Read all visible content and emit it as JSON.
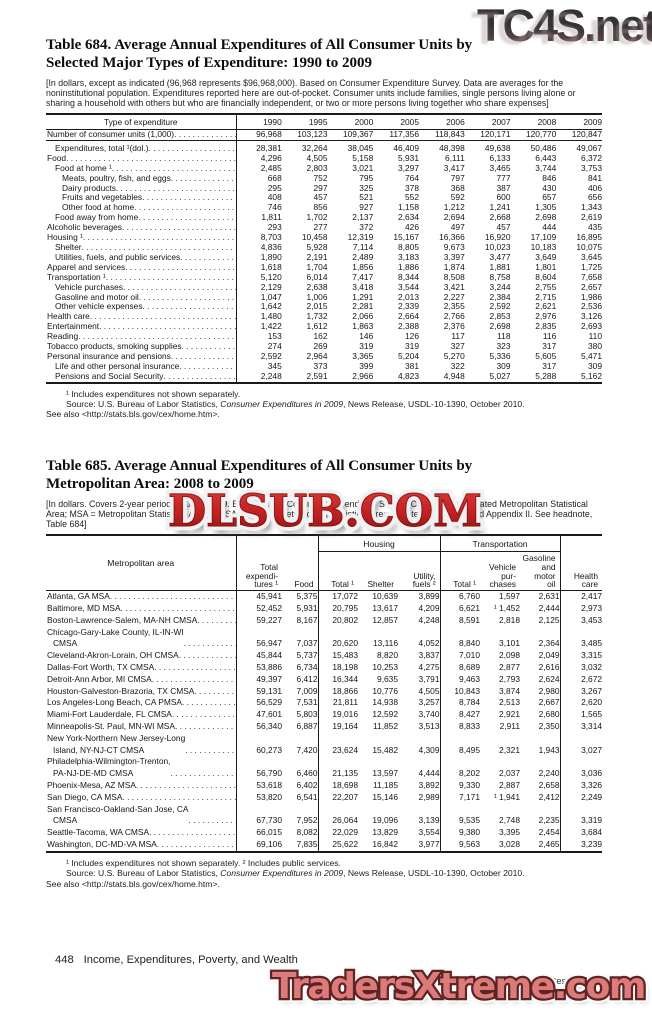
{
  "watermarks": {
    "top_right": "TC4S.net",
    "middle": "DLSUB.COM",
    "bottom": "TradersXtreme.com",
    "colors": {
      "middle_red": "#c42222",
      "bottom_fill": "#dd7a7a",
      "bottom_outline": "#5d2424"
    }
  },
  "table684": {
    "title_line1": "Table 684. Average Annual Expenditures of All Consumer Units by",
    "title_line2": "Selected Major Types of Expenditure: 1990 to 2009",
    "headnote": "[In dollars, except as indicated (96,968 represents $96,968,000). Based on Consumer Expenditure Survey. Data are averages for the noninstitutional population. Expenditures reported here are out-of-pocket. Consumer units include families, single persons living alone or sharing a household with others but who are financially independent, or two or more persons living together who share expenses]",
    "stub_header": "Type of expenditure",
    "years": [
      "1990",
      "1995",
      "2000",
      "2005",
      "2006",
      "2007",
      "2008",
      "2009"
    ],
    "rows": [
      {
        "label": "Number of consumer units (1,000)",
        "indent": 0,
        "bold": false,
        "values": [
          "96,968",
          "103,123",
          "109,367",
          "117,356",
          "118,843",
          "120,171",
          "120,770",
          "120,847"
        ]
      },
      {
        "label": "Expenditures, total ¹(dol.)",
        "indent": 1,
        "bold": true,
        "values": [
          "28,381",
          "32,264",
          "38,045",
          "46,409",
          "48,398",
          "49,638",
          "50,486",
          "49,067"
        ]
      },
      {
        "label": "Food",
        "indent": 0,
        "bold": false,
        "values": [
          "4,296",
          "4,505",
          "5,158",
          "5,931",
          "6,111",
          "6,133",
          "6,443",
          "6,372"
        ]
      },
      {
        "label": "Food at home ¹",
        "indent": 1,
        "bold": false,
        "values": [
          "2,485",
          "2,803",
          "3,021",
          "3,297",
          "3,417",
          "3,465",
          "3,744",
          "3,753"
        ]
      },
      {
        "label": "Meats, poultry, fish, and eggs",
        "indent": 2,
        "bold": false,
        "values": [
          "668",
          "752",
          "795",
          "764",
          "797",
          "777",
          "846",
          "841"
        ]
      },
      {
        "label": "Dairy products",
        "indent": 2,
        "bold": false,
        "values": [
          "295",
          "297",
          "325",
          "378",
          "368",
          "387",
          "430",
          "406"
        ]
      },
      {
        "label": "Fruits and vegetables",
        "indent": 2,
        "bold": false,
        "values": [
          "408",
          "457",
          "521",
          "552",
          "592",
          "600",
          "657",
          "656"
        ]
      },
      {
        "label": "Other food at home",
        "indent": 2,
        "bold": false,
        "values": [
          "746",
          "856",
          "927",
          "1,158",
          "1,212",
          "1,241",
          "1,305",
          "1,343"
        ]
      },
      {
        "label": "Food away from home",
        "indent": 1,
        "bold": false,
        "values": [
          "1,811",
          "1,702",
          "2,137",
          "2,634",
          "2,694",
          "2,668",
          "2,698",
          "2,619"
        ]
      },
      {
        "label": "Alcoholic beverages",
        "indent": 0,
        "bold": false,
        "values": [
          "293",
          "277",
          "372",
          "426",
          "497",
          "457",
          "444",
          "435"
        ]
      },
      {
        "label": "Housing ¹",
        "indent": 0,
        "bold": false,
        "values": [
          "8,703",
          "10,458",
          "12,319",
          "15,167",
          "16,366",
          "16,920",
          "17,109",
          "16,895"
        ]
      },
      {
        "label": "Shelter",
        "indent": 1,
        "bold": false,
        "values": [
          "4,836",
          "5,928",
          "7,114",
          "8,805",
          "9,673",
          "10,023",
          "10,183",
          "10,075"
        ]
      },
      {
        "label": "Utilities, fuels, and public services",
        "indent": 1,
        "bold": false,
        "values": [
          "1,890",
          "2,191",
          "2,489",
          "3,183",
          "3,397",
          "3,477",
          "3,649",
          "3,645"
        ]
      },
      {
        "label": "Apparel and services",
        "indent": 0,
        "bold": false,
        "values": [
          "1,618",
          "1,704",
          "1,856",
          "1,886",
          "1,874",
          "1,881",
          "1,801",
          "1,725"
        ]
      },
      {
        "label": "Transportation ¹",
        "indent": 0,
        "bold": false,
        "values": [
          "5,120",
          "6,014",
          "7,417",
          "8,344",
          "8,508",
          "8,758",
          "8,604",
          "7,658"
        ]
      },
      {
        "label": "Vehicle purchases",
        "indent": 1,
        "bold": false,
        "values": [
          "2,129",
          "2,638",
          "3,418",
          "3,544",
          "3,421",
          "3,244",
          "2,755",
          "2,657"
        ]
      },
      {
        "label": "Gasoline and motor oil",
        "indent": 1,
        "bold": false,
        "values": [
          "1,047",
          "1,006",
          "1,291",
          "2,013",
          "2,227",
          "2,384",
          "2,715",
          "1,986"
        ]
      },
      {
        "label": "Other vehicle expenses",
        "indent": 1,
        "bold": false,
        "values": [
          "1,642",
          "2,015",
          "2,281",
          "2,339",
          "2,355",
          "2,592",
          "2,621",
          "2,536"
        ]
      },
      {
        "label": "Health care",
        "indent": 0,
        "bold": false,
        "values": [
          "1,480",
          "1,732",
          "2,066",
          "2,664",
          "2,766",
          "2,853",
          "2,976",
          "3,126"
        ]
      },
      {
        "label": "Entertainment",
        "indent": 0,
        "bold": false,
        "values": [
          "1,422",
          "1,612",
          "1,863",
          "2,388",
          "2,376",
          "2,698",
          "2,835",
          "2,693"
        ]
      },
      {
        "label": "Reading",
        "indent": 0,
        "bold": false,
        "values": [
          "153",
          "162",
          "146",
          "126",
          "117",
          "118",
          "116",
          "110"
        ]
      },
      {
        "label": "Tobacco products, smoking supplies",
        "indent": 0,
        "bold": false,
        "values": [
          "274",
          "269",
          "319",
          "319",
          "327",
          "323",
          "317",
          "380"
        ]
      },
      {
        "label": "Personal insurance and pensions",
        "indent": 0,
        "bold": false,
        "values": [
          "2,592",
          "2,964",
          "3,365",
          "5,204",
          "5,270",
          "5,336",
          "5,605",
          "5,471"
        ]
      },
      {
        "label": "Life and other personal insurance",
        "indent": 1,
        "bold": false,
        "values": [
          "345",
          "373",
          "399",
          "381",
          "322",
          "309",
          "317",
          "309"
        ]
      },
      {
        "label": "Pensions and Social Security",
        "indent": 1,
        "bold": false,
        "values": [
          "2,248",
          "2,591",
          "2,966",
          "4,823",
          "4,948",
          "5,027",
          "5,288",
          "5,162"
        ]
      }
    ],
    "notes": {
      "fn1": "¹ Includes expenditures not shown separately.",
      "source_pre": "Source: U.S. Bureau of Labor Statistics, ",
      "source_em": "Consumer Expenditures in 2009",
      "source_post": ", News Release, USDL-10-1390, October 2010.",
      "see_also": "See also <http://stats.bls.gov/cex/home.htm>."
    }
  },
  "table685": {
    "title_line1": "Table 685. Average Annual Expenditures of All Consumer Units by",
    "title_line2": "Metropolitan Area: 2008 to 2009",
    "headnote": "[In dollars. Covers 2-year period, 2008 to 2009. Based on the Consumer Expenditure Survey. CMSA = Consolidated Metropolitan Statistical Area; MSA = Metropolitan Statistical Area; PMSA = Primary Metropolitan Statistical Area. See text, Section 1 and Appendix II. See headnote, Table 684]",
    "stub_header": "Metropolitan area",
    "groups": [
      "Housing",
      "Transportation"
    ],
    "columns": [
      "Total\nexpendi-\ntures ¹",
      "Food",
      "Total ¹",
      "Shelter",
      "Utility,\nfuels ²",
      "Total ¹",
      "Vehicle\npur-\nchases",
      "Gasoline\nand\nmotor\noil",
      "Health\ncare"
    ],
    "rows": [
      {
        "label": "Atlanta, GA MSA",
        "values": [
          "45,941",
          "5,375",
          "17,072",
          "10,639",
          "3,899",
          "6,760",
          "1,597",
          "2,631",
          "2,417"
        ]
      },
      {
        "label": "Baltimore, MD MSA",
        "values": [
          "52,452",
          "5,931",
          "20,795",
          "13,617",
          "4,209",
          "6,621",
          "¹ 1,452",
          "2,444",
          "2,973"
        ]
      },
      {
        "label": "Boston-Lawrence-Salem, MA-NH CMSA",
        "values": [
          "59,227",
          "8,167",
          "20,802",
          "12,857",
          "4,248",
          "8,591",
          "2,818",
          "2,125",
          "3,453"
        ]
      },
      {
        "label": "Chicago-Gary-Lake County, IL-IN-WI\nCMSA",
        "values": [
          "56,947",
          "7,037",
          "20,620",
          "13,116",
          "4,052",
          "8,840",
          "3,101",
          "2,364",
          "3,485"
        ]
      },
      {
        "label": "Cleveland-Akron-Lorain, OH CMSA",
        "values": [
          "45,844",
          "5,737",
          "15,483",
          "8,820",
          "3,837",
          "7,010",
          "2,098",
          "2,049",
          "3,315"
        ]
      },
      {
        "label": "Dallas-Fort Worth, TX CMSA",
        "values": [
          "53,886",
          "6,734",
          "18,198",
          "10,253",
          "4,275",
          "8,689",
          "2,877",
          "2,616",
          "3,032"
        ]
      },
      {
        "label": "Detroit-Ann Arbor, MI CMSA",
        "values": [
          "49,397",
          "6,412",
          "16,344",
          "9,635",
          "3,791",
          "9,463",
          "2,793",
          "2,624",
          "2,672"
        ]
      },
      {
        "label": "Houston-Galveston-Brazoria, TX CMSA",
        "values": [
          "59,131",
          "7,009",
          "18,866",
          "10,776",
          "4,505",
          "10,843",
          "3,874",
          "2,980",
          "3,267"
        ]
      },
      {
        "label": "Los Angeles-Long Beach, CA PMSA",
        "values": [
          "56,529",
          "7,531",
          "21,811",
          "14,938",
          "3,257",
          "8,784",
          "2,513",
          "2,667",
          "2,620"
        ]
      },
      {
        "label": "Miami-Fort Lauderdale, FL CMSA",
        "values": [
          "47,601",
          "5,803",
          "19,016",
          "12,592",
          "3,740",
          "8,427",
          "2,921",
          "2,680",
          "1,565"
        ]
      },
      {
        "label": "Minneapolis-St. Paul, MN-WI MSA",
        "values": [
          "56,340",
          "6,887",
          "19,164",
          "11,852",
          "3,513",
          "8,833",
          "2,911",
          "2,350",
          "3,314"
        ]
      },
      {
        "label": "New York-Northern New Jersey-Long\nIsland, NY-NJ-CT CMSA",
        "values": [
          "60,273",
          "7,420",
          "23,624",
          "15,482",
          "4,309",
          "8,495",
          "2,321",
          "1,943",
          "3,027"
        ]
      },
      {
        "label": "Philadelphia-Wilmington-Trenton,\nPA-NJ-DE-MD CMSA",
        "values": [
          "56,790",
          "6,460",
          "21,135",
          "13,597",
          "4,444",
          "8,202",
          "2,037",
          "2,240",
          "3,036"
        ]
      },
      {
        "label": "Phoenix-Mesa, AZ MSA",
        "values": [
          "53,618",
          "6,402",
          "18,698",
          "11,185",
          "3,892",
          "9,330",
          "2,887",
          "2,658",
          "3,326"
        ]
      },
      {
        "label": "San Diego, CA MSA",
        "values": [
          "53,820",
          "6,541",
          "22,207",
          "15,146",
          "2,989",
          "7,171",
          "¹ 1,941",
          "2,412",
          "2,249"
        ]
      },
      {
        "label": "San Francisco-Oakland-San Jose, CA\nCMSA",
        "values": [
          "67,730",
          "7,952",
          "26,064",
          "19,096",
          "3,139",
          "9,535",
          "2,748",
          "2,235",
          "3,319"
        ]
      },
      {
        "label": "Seattle-Tacoma, WA CMSA",
        "values": [
          "66,015",
          "8,082",
          "22,029",
          "13,829",
          "3,554",
          "9,380",
          "3,395",
          "2,454",
          "3,684"
        ]
      },
      {
        "label": "Washington, DC-MD-VA MSA",
        "values": [
          "69,106",
          "7,835",
          "25,622",
          "16,842",
          "3,977",
          "9,563",
          "3,028",
          "2,465",
          "3,239"
        ]
      }
    ],
    "notes": {
      "fn1": "¹ Includes expenditures not shown separately. ² Includes public services.",
      "source_pre": "Source: U.S. Bureau of Labor Statistics, ",
      "source_em": "Consumer Expenditures in 2009",
      "source_post": ", News Release, USDL-10-1390, October 2010.",
      "see_also": "See also <http://stats.bls.gov/cex/home.htm>."
    }
  },
  "footer": {
    "page": "448",
    "section": "Income, Expenditures, Poverty, and Wealth",
    "source": "U.S. Census Bureau, Statistical Abstract of the United States: 2012"
  }
}
